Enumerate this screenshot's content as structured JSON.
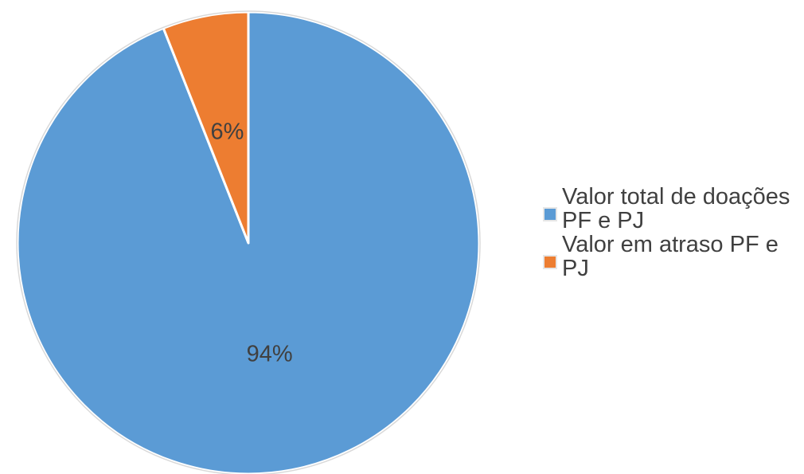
{
  "chart_data": {
    "type": "pie",
    "categories": [
      "Valor total de doações PF e PJ",
      "Valor em atraso PF e PJ"
    ],
    "values": [
      94,
      6
    ],
    "data_labels": [
      "94%",
      "6%"
    ],
    "colors": [
      "#5b9bd5",
      "#ed7d31"
    ],
    "legend_position": "right"
  },
  "legend": {
    "items": [
      {
        "label": "Valor total de doações PF e PJ",
        "color": "#5b9bd5"
      },
      {
        "label": "Valor em atraso PF e PJ",
        "color": "#ed7d31"
      }
    ]
  }
}
